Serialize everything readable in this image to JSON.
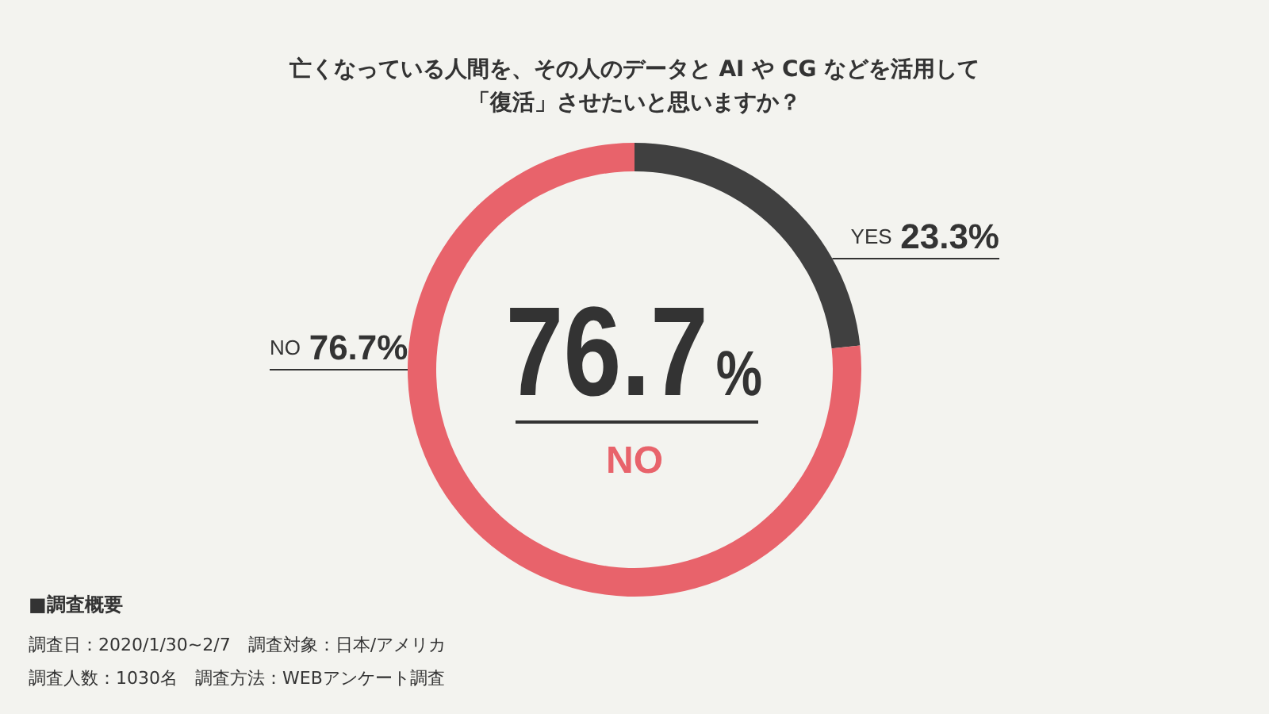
{
  "chart_data": {
    "type": "donut",
    "title": "亡くなっている人間を、その人のデータと AI や CG などを活用して「復活」させたいと思いますか？",
    "categories": [
      "YES",
      "NO"
    ],
    "values": [
      23.3,
      76.7
    ],
    "colors": [
      "#404040",
      "#e8636b"
    ],
    "value_labels": [
      "23.3%",
      "76.7%"
    ],
    "annotations": [
      "76.7%",
      "NO",
      "■調査概要",
      "調査日：2020/1/30~2/7　調査対象：日本/アメリカ",
      "調査人数：1030名　調査方法：WEBアンケート調査"
    ]
  }
}
